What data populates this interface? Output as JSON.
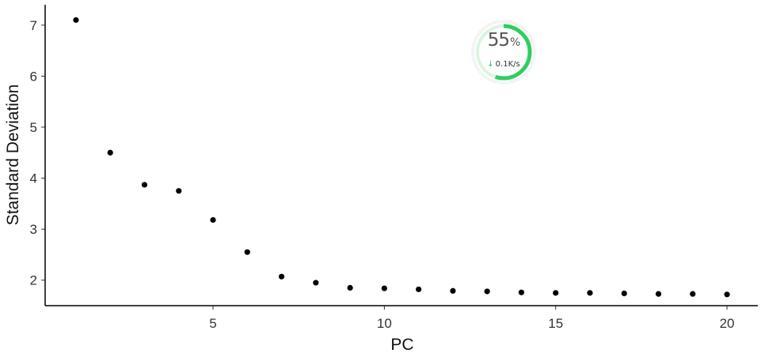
{
  "chart_data": {
    "type": "scatter",
    "xlabel": "PC",
    "ylabel": "Standard Deviation",
    "xlim": [
      0.1,
      20.9
    ],
    "ylim": [
      1.5,
      7.4
    ],
    "xticks": [
      5,
      10,
      15,
      20
    ],
    "yticks": [
      2,
      3,
      4,
      5,
      6,
      7
    ],
    "grid": false,
    "points": [
      {
        "x": 1,
        "y": 7.1
      },
      {
        "x": 2,
        "y": 4.5
      },
      {
        "x": 3,
        "y": 3.87
      },
      {
        "x": 4,
        "y": 3.75
      },
      {
        "x": 5,
        "y": 3.18
      },
      {
        "x": 6,
        "y": 2.55
      },
      {
        "x": 7,
        "y": 2.07
      },
      {
        "x": 8,
        "y": 1.95
      },
      {
        "x": 9,
        "y": 1.85
      },
      {
        "x": 10,
        "y": 1.84
      },
      {
        "x": 11,
        "y": 1.82
      },
      {
        "x": 12,
        "y": 1.79
      },
      {
        "x": 13,
        "y": 1.78
      },
      {
        "x": 14,
        "y": 1.76
      },
      {
        "x": 15,
        "y": 1.75
      },
      {
        "x": 16,
        "y": 1.75
      },
      {
        "x": 17,
        "y": 1.74
      },
      {
        "x": 18,
        "y": 1.73
      },
      {
        "x": 19,
        "y": 1.73
      },
      {
        "x": 20,
        "y": 1.72
      }
    ],
    "point_color": "#000000"
  },
  "speed_widget": {
    "percent_value": "55",
    "percent_sign": "%",
    "rate": "0.1K/s",
    "progress": 0.55,
    "accent_color": "#2fcf5f",
    "icon": "download-arrow-icon"
  }
}
